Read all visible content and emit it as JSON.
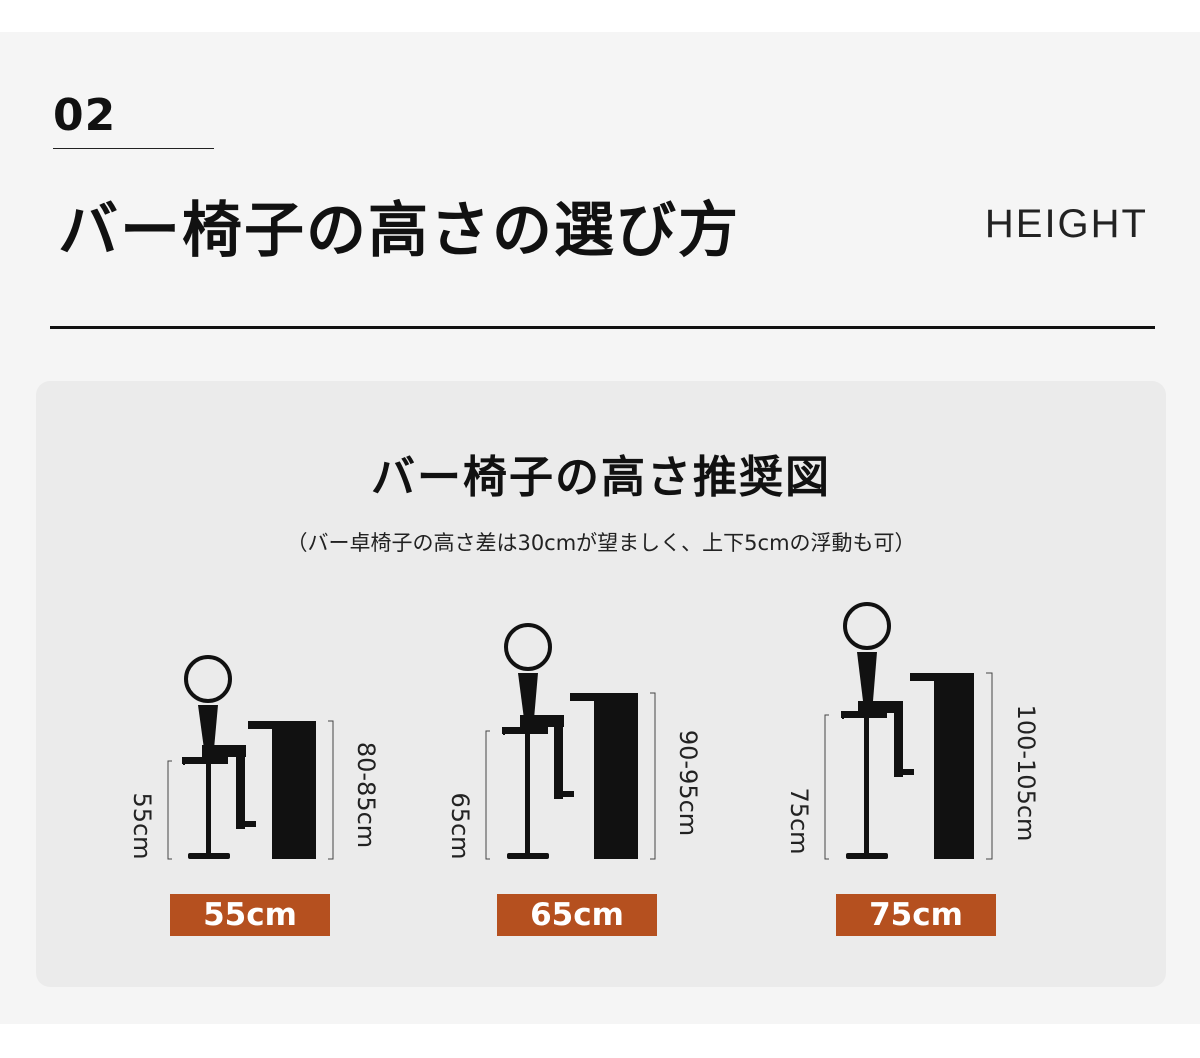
{
  "header": {
    "section_number": "02",
    "title": "バー椅子の高さの選び方",
    "label_en": "HEIGHT"
  },
  "panel": {
    "title": "バー椅子の高さ推奨図",
    "note": "（バー卓椅子の高さ差は30cmが望ましく、上下5cmの浮動も可）"
  },
  "figures": [
    {
      "seat_height": "55cm",
      "counter_height": "80-85cm",
      "label": "55cm"
    },
    {
      "seat_height": "65cm",
      "counter_height": "90-95cm",
      "label": "65cm"
    },
    {
      "seat_height": "75cm",
      "counter_height": "100-105cm",
      "label": "75cm"
    }
  ],
  "colors": {
    "label_background": "#b5501f",
    "figure_ink": "#111111"
  }
}
